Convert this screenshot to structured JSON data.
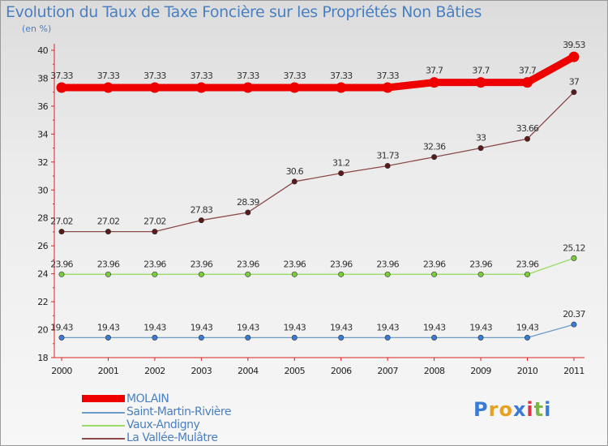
{
  "title": "Evolution du Taux de Taxe Foncière sur les Propriétés Non Bâties",
  "unit": "(en %)",
  "brand": {
    "logo_text": "Proxiti",
    "letters": [
      "P",
      "r",
      "o",
      "x",
      "i",
      "t",
      "i"
    ],
    "letter_colors": [
      "#3a7bd5",
      "#e8a020",
      "#e8a020",
      "#3a7bd5",
      "#d9364a",
      "#7ab648",
      "#3a7bd5"
    ]
  },
  "chart_data": {
    "type": "line",
    "title": "Evolution du Taux de Taxe Foncière sur les Propriétés Non Bâties",
    "ylabel": "(en %)",
    "xlabel": "",
    "ylim": [
      18,
      40
    ],
    "yticks": [
      "18",
      "20",
      "22",
      "24",
      "26",
      "28",
      "30",
      "32",
      "34",
      "36",
      "38",
      "40"
    ],
    "grid": false,
    "legend": "bottom-left",
    "categories": [
      "2000",
      "2001",
      "2002",
      "2003",
      "2004",
      "2005",
      "2006",
      "2007",
      "2008",
      "2009",
      "2010",
      "2011"
    ],
    "series": [
      {
        "name": "MOLAIN",
        "color": "#ee0000",
        "weight": "thick",
        "values": [
          37.33,
          37.33,
          37.33,
          37.33,
          37.33,
          37.33,
          37.33,
          37.33,
          37.7,
          37.7,
          37.7,
          39.53
        ],
        "labels": [
          "37.33",
          "37.33",
          "37.33",
          "37.33",
          "37.33",
          "37.33",
          "37.33",
          "37.33",
          "37.7",
          "37.7",
          "37.7",
          "39.53"
        ]
      },
      {
        "name": "Saint-Martin-Rivière",
        "color": "#6a9cc8",
        "marker": "#3a7bd5",
        "weight": "thin",
        "values": [
          19.43,
          19.43,
          19.43,
          19.43,
          19.43,
          19.43,
          19.43,
          19.43,
          19.43,
          19.43,
          19.43,
          20.37
        ],
        "labels": [
          "19.43",
          "19.43",
          "19.43",
          "19.43",
          "19.43",
          "19.43",
          "19.43",
          "19.43",
          "19.43",
          "19.43",
          "19.43",
          "20.37"
        ]
      },
      {
        "name": "Vaux-Andigny",
        "color": "#99dd66",
        "marker": "#7acc3c",
        "weight": "thin",
        "values": [
          23.96,
          23.96,
          23.96,
          23.96,
          23.96,
          23.96,
          23.96,
          23.96,
          23.96,
          23.96,
          23.96,
          25.12
        ],
        "labels": [
          "23.96",
          "23.96",
          "23.96",
          "23.96",
          "23.96",
          "23.96",
          "23.96",
          "23.96",
          "23.96",
          "23.96",
          "23.96",
          "25.12"
        ]
      },
      {
        "name": "La Vallée-Mulâtre",
        "color": "#8a4a4a",
        "marker": "#5a1a1a",
        "weight": "thin",
        "values": [
          27.02,
          27.02,
          27.02,
          27.83,
          28.39,
          30.6,
          31.2,
          31.73,
          32.36,
          33,
          33.66,
          37
        ],
        "labels": [
          "27.02",
          "27.02",
          "27.02",
          "27.83",
          "28.39",
          "30.6",
          "31.2",
          "31.73",
          "32.36",
          "33",
          "33.66",
          "37"
        ]
      }
    ]
  }
}
